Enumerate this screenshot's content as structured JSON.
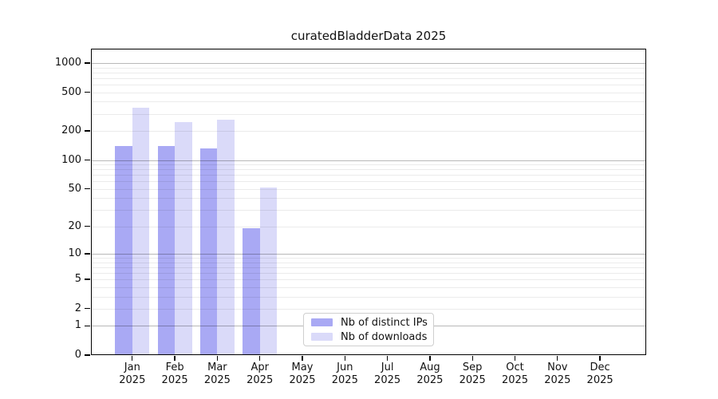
{
  "chart_data": {
    "type": "bar",
    "title": "curatedBladderData 2025",
    "categories": [
      {
        "month": "Jan",
        "year": "2025"
      },
      {
        "month": "Feb",
        "year": "2025"
      },
      {
        "month": "Mar",
        "year": "2025"
      },
      {
        "month": "Apr",
        "year": "2025"
      },
      {
        "month": "May",
        "year": "2025"
      },
      {
        "month": "Jun",
        "year": "2025"
      },
      {
        "month": "Jul",
        "year": "2025"
      },
      {
        "month": "Aug",
        "year": "2025"
      },
      {
        "month": "Sep",
        "year": "2025"
      },
      {
        "month": "Oct",
        "year": "2025"
      },
      {
        "month": "Nov",
        "year": "2025"
      },
      {
        "month": "Dec",
        "year": "2025"
      }
    ],
    "series": [
      {
        "name": "Nb of distinct IPs",
        "color": "#a9a9f4",
        "values": [
          140,
          140,
          131,
          19,
          0,
          0,
          0,
          0,
          0,
          0,
          0,
          0
        ]
      },
      {
        "name": "Nb of downloads",
        "color": "#dadaf9",
        "values": [
          350,
          248,
          262,
          52,
          0,
          0,
          0,
          0,
          0,
          0,
          0,
          0
        ]
      }
    ],
    "y_scale": "log10(1+x)",
    "y_ticks": [
      0,
      1,
      2,
      5,
      10,
      20,
      50,
      100,
      200,
      500,
      1000
    ],
    "grid": {
      "major_lines": [
        1,
        10,
        100,
        1000
      ],
      "minor_multiples_per_decade": [
        2,
        3,
        4,
        5,
        6,
        7,
        8,
        9
      ],
      "minor_decades": [
        1,
        10,
        100
      ]
    },
    "ylim": [
      0,
      1390
    ],
    "legend_position": "lower center",
    "xlabel": "",
    "ylabel": ""
  }
}
